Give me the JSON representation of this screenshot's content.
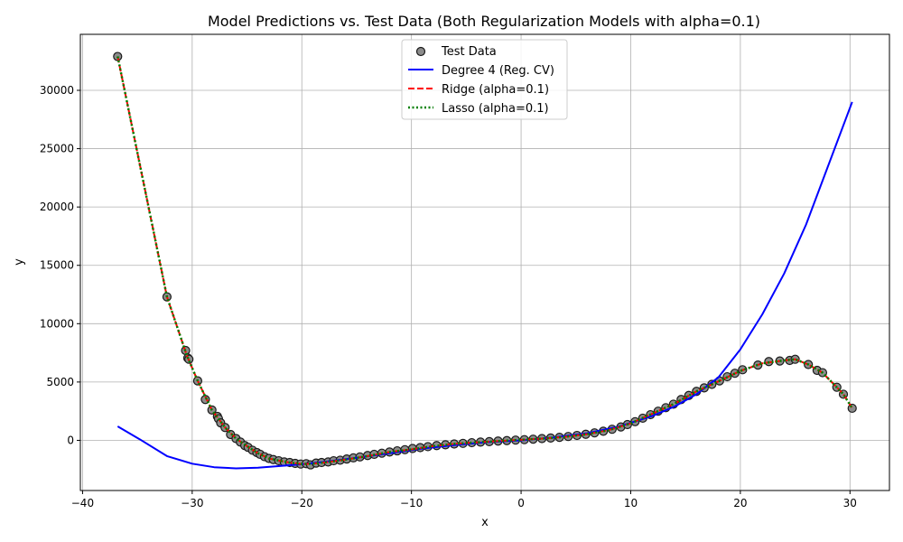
{
  "chart_data": {
    "type": "scatter",
    "title": "Model Predictions vs. Test Data (Both Regularization Models with alpha=0.1)",
    "xlabel": "x",
    "ylabel": "y",
    "xlim": [
      -40.2,
      33.6
    ],
    "ylim": [
      -4300,
      34800
    ],
    "xticks": [
      -40,
      -30,
      -20,
      -10,
      0,
      10,
      20,
      30
    ],
    "yticks": [
      0,
      5000,
      10000,
      15000,
      20000,
      25000,
      30000
    ],
    "grid": true,
    "legend_position": "top-center",
    "colors": {
      "test_data_fill": "#8c8c8c",
      "test_data_edge": "#1a1a1a",
      "degree4": "#0000ff",
      "ridge": "#ff0000",
      "lasso": "#008000",
      "grid": "#b0b0b0"
    },
    "series": [
      {
        "name": "Test Data",
        "kind": "scatter",
        "points": [
          [
            -36.8,
            32900
          ],
          [
            -32.3,
            12300
          ],
          [
            -30.6,
            7700
          ],
          [
            -30.4,
            7050
          ],
          [
            -30.3,
            6950
          ],
          [
            -29.5,
            5100
          ],
          [
            -28.8,
            3500
          ],
          [
            -28.2,
            2600
          ],
          [
            -27.7,
            2050
          ],
          [
            -27.6,
            1850
          ],
          [
            -27.4,
            1500
          ],
          [
            -27.0,
            1100
          ],
          [
            -26.5,
            500
          ],
          [
            -26.0,
            150
          ],
          [
            -25.6,
            -150
          ],
          [
            -25.2,
            -450
          ],
          [
            -24.9,
            -600
          ],
          [
            -24.5,
            -850
          ],
          [
            -24.1,
            -1050
          ],
          [
            -23.8,
            -1200
          ],
          [
            -23.4,
            -1400
          ],
          [
            -23.0,
            -1550
          ],
          [
            -22.6,
            -1650
          ],
          [
            -22.1,
            -1750
          ],
          [
            -21.6,
            -1850
          ],
          [
            -21.1,
            -1900
          ],
          [
            -20.6,
            -1980
          ],
          [
            -20.1,
            -2030
          ],
          [
            -19.6,
            -2000
          ],
          [
            -19.2,
            -2100
          ],
          [
            -18.7,
            -1950
          ],
          [
            -18.2,
            -1900
          ],
          [
            -17.6,
            -1850
          ],
          [
            -17.1,
            -1750
          ],
          [
            -16.5,
            -1700
          ],
          [
            -15.9,
            -1600
          ],
          [
            -15.3,
            -1500
          ],
          [
            -14.7,
            -1420
          ],
          [
            -14.0,
            -1300
          ],
          [
            -13.4,
            -1200
          ],
          [
            -12.7,
            -1100
          ],
          [
            -12.0,
            -1000
          ],
          [
            -11.3,
            -900
          ],
          [
            -10.6,
            -800
          ],
          [
            -9.9,
            -700
          ],
          [
            -9.2,
            -620
          ],
          [
            -8.5,
            -540
          ],
          [
            -7.7,
            -450
          ],
          [
            -6.9,
            -380
          ],
          [
            -6.1,
            -310
          ],
          [
            -5.3,
            -260
          ],
          [
            -4.5,
            -200
          ],
          [
            -3.7,
            -150
          ],
          [
            -2.9,
            -110
          ],
          [
            -2.1,
            -60
          ],
          [
            -1.3,
            -20
          ],
          [
            -0.5,
            20
          ],
          [
            0.3,
            60
          ],
          [
            1.1,
            100
          ],
          [
            1.9,
            150
          ],
          [
            2.7,
            200
          ],
          [
            3.5,
            260
          ],
          [
            4.3,
            330
          ],
          [
            5.1,
            420
          ],
          [
            5.9,
            520
          ],
          [
            6.7,
            640
          ],
          [
            7.5,
            780
          ],
          [
            8.3,
            950
          ],
          [
            9.1,
            1150
          ],
          [
            9.7,
            1350
          ],
          [
            10.4,
            1600
          ],
          [
            11.1,
            1900
          ],
          [
            11.8,
            2200
          ],
          [
            12.5,
            2500
          ],
          [
            13.2,
            2800
          ],
          [
            13.9,
            3100
          ],
          [
            14.6,
            3500
          ],
          [
            15.3,
            3850
          ],
          [
            16.0,
            4200
          ],
          [
            16.7,
            4500
          ],
          [
            17.4,
            4800
          ],
          [
            18.1,
            5100
          ],
          [
            18.8,
            5450
          ],
          [
            19.5,
            5750
          ],
          [
            20.2,
            6050
          ],
          [
            21.6,
            6450
          ],
          [
            22.6,
            6750
          ],
          [
            23.6,
            6800
          ],
          [
            24.5,
            6850
          ],
          [
            25.0,
            6950
          ],
          [
            26.2,
            6500
          ],
          [
            27.0,
            6000
          ],
          [
            27.5,
            5800
          ],
          [
            28.8,
            4550
          ],
          [
            29.4,
            3950
          ],
          [
            30.2,
            2750
          ]
        ]
      },
      {
        "name": "Degree 4 (Reg. CV)",
        "kind": "line",
        "style": "solid",
        "points": [
          [
            -36.8,
            1200
          ],
          [
            -34.8,
            100
          ],
          [
            -32.3,
            -1350
          ],
          [
            -30.0,
            -2000
          ],
          [
            -28.0,
            -2300
          ],
          [
            -26.0,
            -2400
          ],
          [
            -24.0,
            -2350
          ],
          [
            -22.0,
            -2200
          ],
          [
            -20.0,
            -2050
          ],
          [
            -18.0,
            -1850
          ],
          [
            -15.0,
            -1500
          ],
          [
            -12.0,
            -1100
          ],
          [
            -9.0,
            -700
          ],
          [
            -6.0,
            -400
          ],
          [
            -3.0,
            -150
          ],
          [
            0.0,
            0
          ],
          [
            3.0,
            250
          ],
          [
            6.0,
            600
          ],
          [
            9.0,
            1200
          ],
          [
            12.0,
            2100
          ],
          [
            14.0,
            2900
          ],
          [
            16.0,
            3950
          ],
          [
            18.0,
            5400
          ],
          [
            20.0,
            7800
          ],
          [
            22.0,
            10800
          ],
          [
            24.0,
            14300
          ],
          [
            26.0,
            18500
          ],
          [
            28.0,
            23500
          ],
          [
            30.2,
            29000
          ]
        ]
      },
      {
        "name": "Ridge (alpha=0.1)",
        "kind": "line",
        "style": "dashed",
        "points": [
          [
            -36.8,
            32900
          ],
          [
            -32.3,
            12300
          ],
          [
            -30.5,
            7300
          ],
          [
            -29.5,
            5100
          ],
          [
            -28.2,
            2600
          ],
          [
            -27.0,
            1100
          ],
          [
            -26.0,
            150
          ],
          [
            -25.0,
            -500
          ],
          [
            -24.0,
            -1100
          ],
          [
            -23.0,
            -1550
          ],
          [
            -22.0,
            -1750
          ],
          [
            -21.0,
            -1920
          ],
          [
            -20.0,
            -2030
          ],
          [
            -19.0,
            -2000
          ],
          [
            -18.0,
            -1900
          ],
          [
            -16.0,
            -1650
          ],
          [
            -14.0,
            -1350
          ],
          [
            -12.0,
            -1000
          ],
          [
            -10.0,
            -780
          ],
          [
            -8.0,
            -500
          ],
          [
            -6.0,
            -300
          ],
          [
            -4.0,
            -170
          ],
          [
            -2.0,
            -60
          ],
          [
            0.0,
            40
          ],
          [
            2.0,
            150
          ],
          [
            4.0,
            300
          ],
          [
            6.0,
            530
          ],
          [
            8.0,
            880
          ],
          [
            10.0,
            1450
          ],
          [
            12.0,
            2300
          ],
          [
            14.0,
            3150
          ],
          [
            16.0,
            4200
          ],
          [
            18.0,
            5050
          ],
          [
            20.0,
            5950
          ],
          [
            22.0,
            6600
          ],
          [
            24.0,
            6850
          ],
          [
            25.0,
            6950
          ],
          [
            26.2,
            6500
          ],
          [
            27.5,
            5800
          ],
          [
            28.8,
            4550
          ],
          [
            29.4,
            3950
          ],
          [
            30.2,
            2750
          ]
        ]
      },
      {
        "name": "Lasso (alpha=0.1)",
        "kind": "line",
        "style": "dotted",
        "points": [
          [
            -36.8,
            32900
          ],
          [
            -32.3,
            12300
          ],
          [
            -30.5,
            7300
          ],
          [
            -29.5,
            5100
          ],
          [
            -28.2,
            2600
          ],
          [
            -27.0,
            1100
          ],
          [
            -26.0,
            150
          ],
          [
            -25.0,
            -500
          ],
          [
            -24.0,
            -1100
          ],
          [
            -23.0,
            -1550
          ],
          [
            -22.0,
            -1750
          ],
          [
            -21.0,
            -1920
          ],
          [
            -20.0,
            -2030
          ],
          [
            -19.0,
            -2000
          ],
          [
            -18.0,
            -1900
          ],
          [
            -16.0,
            -1650
          ],
          [
            -14.0,
            -1350
          ],
          [
            -12.0,
            -1000
          ],
          [
            -10.0,
            -780
          ],
          [
            -8.0,
            -500
          ],
          [
            -6.0,
            -300
          ],
          [
            -4.0,
            -170
          ],
          [
            -2.0,
            -60
          ],
          [
            0.0,
            40
          ],
          [
            2.0,
            150
          ],
          [
            4.0,
            300
          ],
          [
            6.0,
            530
          ],
          [
            8.0,
            880
          ],
          [
            10.0,
            1450
          ],
          [
            12.0,
            2300
          ],
          [
            14.0,
            3150
          ],
          [
            16.0,
            4200
          ],
          [
            18.0,
            5050
          ],
          [
            20.0,
            5950
          ],
          [
            22.0,
            6600
          ],
          [
            24.0,
            6850
          ],
          [
            25.0,
            6950
          ],
          [
            26.2,
            6500
          ],
          [
            27.5,
            5800
          ],
          [
            28.8,
            4550
          ],
          [
            29.4,
            3950
          ],
          [
            30.2,
            2750
          ]
        ]
      }
    ]
  }
}
